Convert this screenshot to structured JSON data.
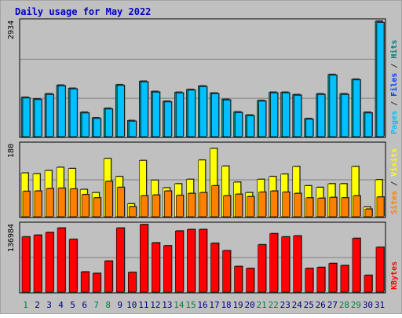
{
  "chart_data": {
    "type": "bar",
    "title": "Daily usage for May 2022",
    "categories": [
      "1",
      "2",
      "3",
      "4",
      "5",
      "6",
      "7",
      "8",
      "9",
      "10",
      "11",
      "12",
      "13",
      "14",
      "15",
      "16",
      "17",
      "18",
      "19",
      "20",
      "21",
      "22",
      "23",
      "24",
      "25",
      "26",
      "27",
      "28",
      "29",
      "30",
      "31"
    ],
    "weekend_days": [
      "1",
      "7",
      "8",
      "14",
      "15",
      "21",
      "22",
      "28",
      "29"
    ],
    "panels": [
      {
        "id": "hits",
        "max_label": "2934",
        "ylim": [
          0,
          2934
        ],
        "right_labels": [
          {
            "text": "Pages",
            "color": "#00c0ff"
          },
          {
            "text": " / ",
            "color": "#333333"
          },
          {
            "text": "Files",
            "color": "#0040ff"
          },
          {
            "text": " / ",
            "color": "#333333"
          },
          {
            "text": "Hits",
            "color": "#008080"
          }
        ],
        "series": [
          {
            "name": "Hits",
            "color": "#008080",
            "values": [
              1000,
              960,
              1090,
              1310,
              1230,
              620,
              480,
              720,
              1320,
              410,
              1410,
              1150,
              900,
              1130,
              1200,
              1290,
              1110,
              950,
              630,
              550,
              920,
              1130,
              1130,
              1070,
              460,
              1090,
              1580,
              1090,
              1460,
              620,
              2934
            ]
          },
          {
            "name": "Files",
            "color": "#00c0ff",
            "values": [
              980,
              940,
              1070,
              1290,
              1210,
              600,
              460,
              700,
              1300,
              390,
              1390,
              1130,
              880,
              1110,
              1180,
              1270,
              1090,
              930,
              610,
              530,
              900,
              1110,
              1110,
              1050,
              440,
              1070,
              1560,
              1070,
              1440,
              600,
              2900
            ]
          }
        ]
      },
      {
        "id": "visits",
        "max_label": "180",
        "ylim": [
          0,
          180
        ],
        "right_labels": [
          {
            "text": "Sites",
            "color": "#ff8000"
          },
          {
            "text": " / ",
            "color": "#333333"
          },
          {
            "text": "Visits",
            "color": "#ffff00"
          }
        ],
        "series": [
          {
            "name": "Visits",
            "color": "#ffff00",
            "values": [
              109,
              107,
              115,
              123,
              120,
              68,
              60,
              145,
              100,
              32,
              140,
              91,
              72,
              82,
              93,
              141,
              170,
              126,
              86,
              60,
              93,
              100,
              106,
              125,
              77,
              73,
              82,
              82,
              125,
              24,
              92
            ]
          },
          {
            "name": "Sites",
            "color": "#ff8000",
            "values": [
              63,
              64,
              70,
              71,
              69,
              55,
              47,
              88,
              73,
              25,
              52,
              54,
              64,
              53,
              58,
              60,
              77,
              52,
              56,
              50,
              61,
              64,
              61,
              58,
              47,
              46,
              48,
              47,
              52,
              19,
              49
            ]
          }
        ]
      },
      {
        "id": "kbytes",
        "max_label": "136984",
        "ylim": [
          0,
          136984
        ],
        "right_labels": [
          {
            "text": "KBytes",
            "color": "#ff0000"
          }
        ],
        "series": [
          {
            "name": "KBytes",
            "color": "#ff0000",
            "values": [
              112000,
              115500,
              121000,
              130000,
              107000,
              41000,
              38000,
              63000,
              130000,
              40000,
              136984,
              100000,
              94000,
              124000,
              127000,
              127000,
              99000,
              84000,
              52000,
              48000,
              96000,
              118500,
              112000,
              114000,
              48000,
              50000,
              58000,
              54000,
              109000,
              34000,
              91000
            ]
          }
        ]
      }
    ]
  }
}
